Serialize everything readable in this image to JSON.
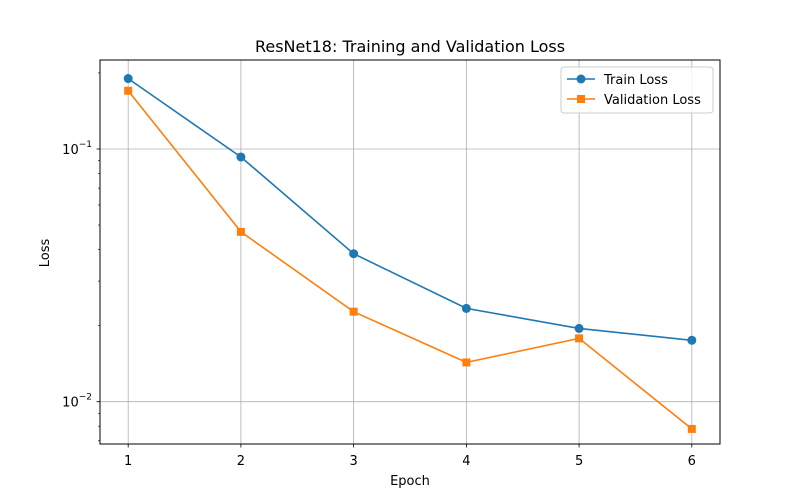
{
  "chart_data": {
    "type": "line",
    "title": "ResNet18: Training and Validation Loss",
    "xlabel": "Epoch",
    "ylabel": "Loss",
    "x": [
      1,
      2,
      3,
      4,
      5,
      6
    ],
    "x_tick_labels": [
      "1",
      "2",
      "3",
      "4",
      "5",
      "6"
    ],
    "xlim": [
      0.75,
      6.25
    ],
    "y_scale": "log",
    "ylim": [
      0.0068,
      0.225
    ],
    "y_ticks": [
      0.01,
      0.1
    ],
    "y_tick_labels": [
      {
        "base": "10",
        "exp": "−2"
      },
      {
        "base": "10",
        "exp": "−1"
      }
    ],
    "grid": true,
    "legend_position": "top-right",
    "series": [
      {
        "name": "Train Loss",
        "color": "#1f77b4",
        "marker": "circle",
        "values": [
          0.19,
          0.093,
          0.0385,
          0.0234,
          0.0195,
          0.0175
        ]
      },
      {
        "name": "Validation Loss",
        "color": "#ff7f0e",
        "marker": "square",
        "values": [
          0.17,
          0.047,
          0.0227,
          0.0143,
          0.0178,
          0.0078
        ]
      }
    ]
  }
}
